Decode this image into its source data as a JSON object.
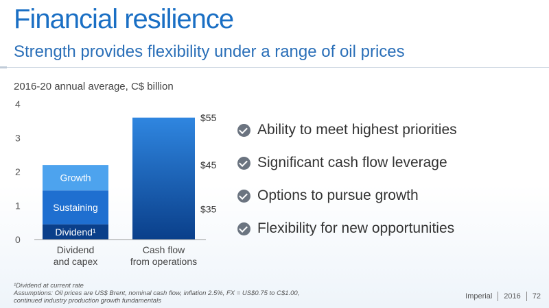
{
  "slide": {
    "title": "Financial resilience",
    "subtitle": "Strength provides flexibility under a range of oil prices",
    "chart_caption": "2016-20 annual average, C$ billion",
    "bullets": [
      "Ability to meet highest priorities",
      "Significant cash flow leverage",
      "Options to pursue growth",
      "Flexibility for new opportunities"
    ],
    "footnote_lines": [
      "¹Dividend at current rate",
      "Assumptions: Oil prices are US$ Brent, nominal cash flow, inflation 2.5%, FX = US$0.75 to C$1.00,",
      "continued industry production growth fundamentals"
    ],
    "footer": {
      "company": "Imperial",
      "year": "2016",
      "page": "72"
    }
  },
  "chart_data": {
    "type": "bar",
    "ylim": [
      0,
      4
    ],
    "yticks": [
      "0",
      "1",
      "2",
      "3",
      "4"
    ],
    "categories": [
      [
        "Dividend",
        "and capex"
      ],
      [
        "Cash flow",
        "from operations"
      ]
    ],
    "dividend_capex_segments": [
      {
        "label": "Dividend¹",
        "value": 0.45
      },
      {
        "label": "Sustaining",
        "value": 1.0
      },
      {
        "label": "Growth",
        "value": 0.75
      }
    ],
    "cash_flow_price_scenarios": [
      {
        "label": "$55",
        "value": 3.6
      },
      {
        "label": "$45",
        "value": 2.2
      },
      {
        "label": "$35",
        "value": 0.9
      }
    ],
    "colors": {
      "dividend": "#0a3f8a",
      "sustaining": "#1f6fd0",
      "growth": "#4da3ee",
      "cash_top": "#2f86e0",
      "cash_bottom": "#0a3f8a"
    }
  }
}
